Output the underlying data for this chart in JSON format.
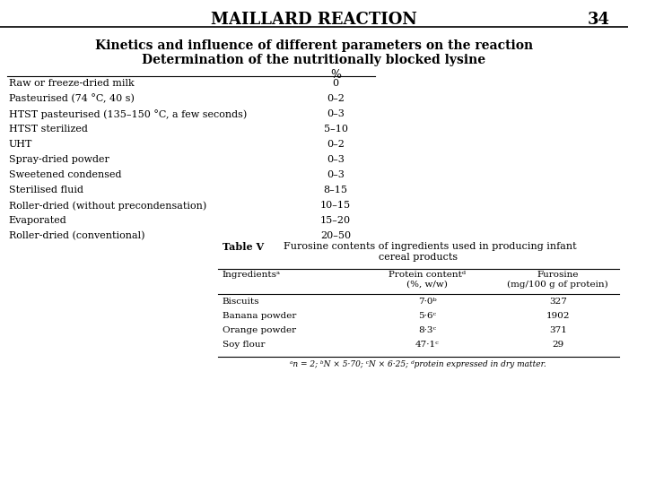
{
  "title": "MAILLARD REACTION",
  "page_number": "34",
  "subtitle1": "Kinetics and influence of different parameters on the reaction",
  "subtitle2": "Determination of the nutritionally blocked lysine",
  "table1_header": "%",
  "table1_rows": [
    [
      "Raw or freeze-dried milk",
      "0"
    ],
    [
      "Pasteurised (74 °C, 40 s)",
      "0–2"
    ],
    [
      "HTST pasteurised (135–150 °C, a few seconds)",
      "0–3"
    ],
    [
      "HTST sterilized",
      "5–10"
    ],
    [
      "UHT",
      "0–2"
    ],
    [
      "Spray-dried powder",
      "0–3"
    ],
    [
      "Sweetened condensed",
      "0–3"
    ],
    [
      "Sterilised fluid",
      "8–15"
    ],
    [
      "Roller-dried (without precondensation)",
      "10–15"
    ],
    [
      "Evaporated",
      "15–20"
    ],
    [
      "Roller-dried (conventional)",
      "20–50"
    ]
  ],
  "table2_title": "Table V",
  "table2_caption": "Furosine contents of ingredients used in producing infant\ncereal products",
  "table2_col1_header": "Ingredientsᵃ",
  "table2_col2_header": "Protein contentᵈ\n(%, w/w)",
  "table2_col3_header": "Furosine\n(mg/100 g of protein)",
  "table2_rows": [
    [
      "Biscuits",
      "7·0ᵇ",
      "327"
    ],
    [
      "Banana powder",
      "5·6ᶜ",
      "1902"
    ],
    [
      "Orange powder",
      "8·3ᶜ",
      "371"
    ],
    [
      "Soy flour",
      "47·1ᶜ",
      "29"
    ]
  ],
  "footnote": "ᵃn = 2; ᵇN × 5·70; ᶜN × 6·25; ᵈprotein expressed in dry matter.",
  "bg_color": "#ffffff",
  "text_color": "#000000",
  "line_color": "#000000"
}
